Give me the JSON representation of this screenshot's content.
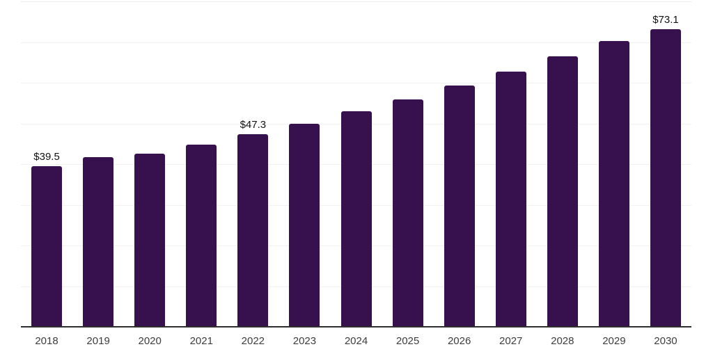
{
  "chart_data": {
    "type": "bar",
    "title": "",
    "xlabel": "",
    "ylabel": "",
    "unit_prefix": "$",
    "categories": [
      "2018",
      "2019",
      "2020",
      "2021",
      "2022",
      "2023",
      "2024",
      "2025",
      "2026",
      "2027",
      "2028",
      "2029",
      "2030"
    ],
    "values": [
      39.5,
      41.7,
      42.5,
      44.8,
      47.3,
      50.0,
      53.0,
      55.9,
      59.3,
      62.8,
      66.5,
      70.3,
      73.1
    ],
    "data_labels": {
      "2018": "$39.5",
      "2022": "$47.3",
      "2030": "$73.1"
    },
    "ylim": [
      0,
      80
    ],
    "y_gridline_step": 10,
    "grid": true,
    "legend": false,
    "y_axis_tick_labels_visible": false
  },
  "colors": {
    "bar": "#36114e",
    "gridline": "#f2f2f2",
    "top_gridline": "#ececec",
    "axis_line": "#2e2e2e",
    "value_label": "#111111",
    "tick_label": "#3d3d3d",
    "background": "#ffffff"
  }
}
